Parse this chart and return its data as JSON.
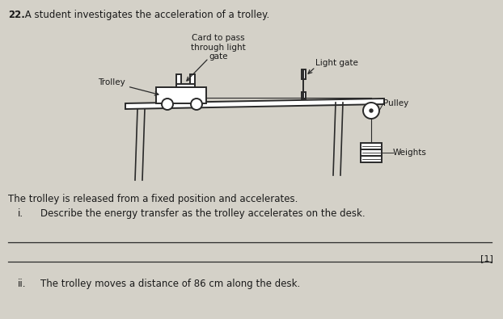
{
  "background_color": "#d4d1c8",
  "question_number": "22.",
  "question_text": " A student investigates the acceleration of a trolley.",
  "released_text": "The trolley is released from a fixed position and accelerates.",
  "part_i_label": "i.",
  "part_i_text": "Describe the energy transfer as the trolley accelerates on the desk.",
  "part_i_mark": "[1]",
  "part_ii_label": "ii.",
  "part_ii_text": "The trolley moves a distance of 86 cm along the desk.",
  "label_trolley": "Trolley",
  "label_card": "Card to pass\nthrough light\ngate",
  "label_light_gate": "Light gate",
  "label_pulley": "Pulley",
  "label_weights": "Weights",
  "line_color": "#2a2a2a",
  "text_color": "#1a1a1a",
  "font_size_main": 8.5,
  "font_size_label": 7.5,
  "font_size_mark": 8.0,
  "diagram_scale": 1.0
}
